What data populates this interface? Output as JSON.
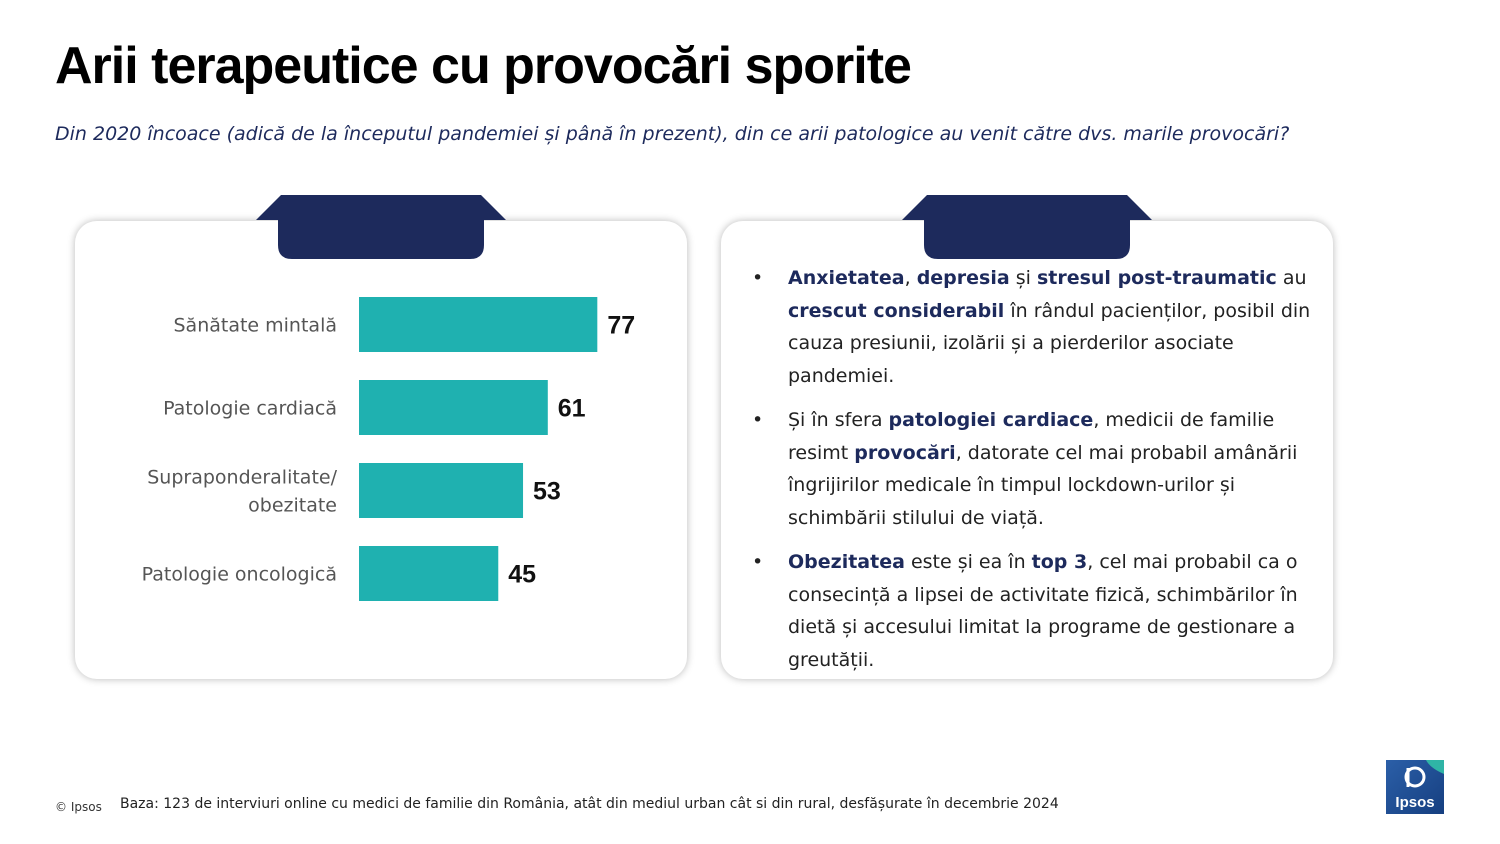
{
  "title": "Arii terapeutice cu provocări sporite",
  "subtitle": "Din 2020 încoace (adică de la începutul pandemiei și până în prezent), din ce arii patologice au venit către dvs. marile provocări?",
  "colors": {
    "bar": "#1fb1b0",
    "navy": "#1d2a5c",
    "logo": "#1f4d8f"
  },
  "chart_data": {
    "type": "bar",
    "orientation": "horizontal",
    "categories": [
      [
        "Sănătate mintală"
      ],
      [
        "Patologie cardiacă"
      ],
      [
        "Supraponderalitate/",
        "obezitate"
      ],
      [
        "Patologie oncologică"
      ]
    ],
    "values": [
      77,
      61,
      53,
      45
    ],
    "xlim": [
      0,
      100
    ],
    "grid": false
  },
  "bullets": [
    {
      "runs": [
        {
          "t": "Anxietatea",
          "b": true
        },
        {
          "t": ", "
        },
        {
          "t": "depresia",
          "b": true
        },
        {
          "t": " și "
        },
        {
          "t": "stresul post-traumatic",
          "b": true
        },
        {
          "t": " au "
        },
        {
          "t": "crescut considerabil",
          "b": true
        },
        {
          "t": " în rândul pacienților, posibil din cauza presiunii, izolării și a pierderilor asociate pandemiei."
        }
      ]
    },
    {
      "runs": [
        {
          "t": "Și în sfera "
        },
        {
          "t": "patologiei cardiace",
          "b": true
        },
        {
          "t": ", medicii de familie resimt "
        },
        {
          "t": "provocări",
          "b": true
        },
        {
          "t": ", datorate cel mai probabil amânării îngrijirilor medicale în timpul lockdown-urilor și schimbării stilului de viață."
        }
      ]
    },
    {
      "runs": [
        {
          "t": "Obezitatea",
          "b": true
        },
        {
          "t": " este și ea în "
        },
        {
          "t": "top 3",
          "b": true
        },
        {
          "t": ", cel mai probabil ca o consecință a lipsei de activitate fizică, schimbărilor în dietă și accesului limitat la programe de gestionare a greutății."
        }
      ]
    }
  ],
  "bullet_symbol": "•",
  "footer": {
    "copyright": "© Ipsos",
    "note": "Baza: 123 de interviuri online cu medici de familie din România, atât din mediul urban cât si din rural, desfășurate în decembrie 2024"
  },
  "logo": {
    "text": "Ipsos",
    "icon": "ipsos-logo-icon"
  }
}
